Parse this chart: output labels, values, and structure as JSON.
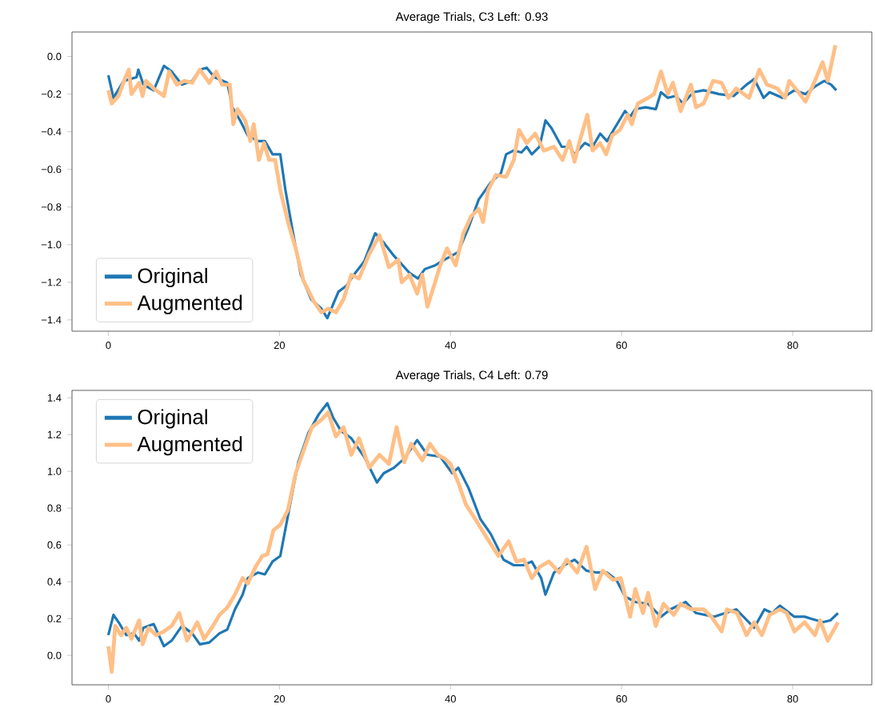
{
  "chart_data": [
    {
      "type": "line",
      "title": "Average Trials, C3 Left: 0.93",
      "legend": "bottom left",
      "xlim": [
        -4.25,
        89.25
      ],
      "ylim": [
        -1.46,
        0.13
      ],
      "xticks": [
        0,
        20,
        40,
        60,
        80
      ],
      "yticks": [
        {
          "value": -1.4,
          "label": "−1.4"
        },
        {
          "value": -1.2,
          "label": "−1.2"
        },
        {
          "value": -1.0,
          "label": "−1.0"
        },
        {
          "value": -0.8,
          "label": "−0.8"
        },
        {
          "value": -0.6,
          "label": "−0.6"
        },
        {
          "value": -0.4,
          "label": "−0.4"
        },
        {
          "value": -0.2,
          "label": "−0.2"
        },
        {
          "value": 0.0,
          "label": "0.0"
        }
      ],
      "series": [
        {
          "name": "Original",
          "color": "#1f77b4",
          "x": [
            0,
            0.6,
            1.8,
            3.3,
            3.5,
            4.1,
            5.3,
            6.5,
            7.4,
            8.6,
            9.8,
            10.7,
            11.5,
            12.4,
            13.9,
            14.5,
            15.4,
            16.3,
            17.5,
            18.3,
            19.2,
            20.1,
            20.7,
            21.6,
            22.5,
            23.7,
            24.9,
            25.6,
            26.9,
            27.8,
            28.7,
            29.9,
            31.2,
            32.2,
            33.4,
            35.2,
            36.2,
            37,
            38.2,
            39.3,
            40.9,
            42.1,
            43.3,
            44.7,
            45.9,
            46.5,
            47.4,
            48.3,
            48.9,
            49.5,
            50.4,
            51.1,
            51.8,
            53,
            53.9,
            54.5,
            55.7,
            56.6,
            57.5,
            58.3,
            59.2,
            60.4,
            61,
            61.6,
            62.8,
            64,
            64.6,
            65.4,
            66.3,
            67.2,
            68.4,
            69.6,
            71.4,
            73.1,
            74.6,
            75.5,
            76.6,
            77.3,
            78.8,
            80.2,
            81.5,
            82.6,
            83.7,
            84.5,
            85.1
          ],
          "values": [
            -0.1,
            -0.22,
            -0.13,
            -0.11,
            -0.07,
            -0.15,
            -0.18,
            -0.05,
            -0.08,
            -0.15,
            -0.13,
            -0.07,
            -0.06,
            -0.11,
            -0.14,
            -0.27,
            -0.34,
            -0.42,
            -0.45,
            -0.45,
            -0.52,
            -0.52,
            -0.71,
            -0.94,
            -1.16,
            -1.29,
            -1.34,
            -1.39,
            -1.25,
            -1.22,
            -1.16,
            -1.09,
            -0.94,
            -0.99,
            -1.06,
            -1.15,
            -1.18,
            -1.13,
            -1.11,
            -1.08,
            -1.04,
            -0.91,
            -0.76,
            -0.67,
            -0.62,
            -0.52,
            -0.5,
            -0.51,
            -0.48,
            -0.52,
            -0.48,
            -0.34,
            -0.38,
            -0.48,
            -0.48,
            -0.52,
            -0.46,
            -0.48,
            -0.41,
            -0.45,
            -0.38,
            -0.29,
            -0.32,
            -0.28,
            -0.27,
            -0.28,
            -0.19,
            -0.22,
            -0.21,
            -0.25,
            -0.19,
            -0.18,
            -0.2,
            -0.21,
            -0.15,
            -0.12,
            -0.22,
            -0.19,
            -0.22,
            -0.18,
            -0.2,
            -0.16,
            -0.13,
            -0.15,
            -0.18
          ]
        },
        {
          "name": "Augmented",
          "color": "#ffbf87",
          "x": [
            0,
            0.4,
            1.2,
            2,
            2.4,
            2.7,
            3.6,
            4,
            4.4,
            5.3,
            6.5,
            7.1,
            8,
            8.9,
            9.8,
            10.7,
            11.8,
            12.6,
            13.3,
            14.2,
            14.6,
            15.1,
            16,
            16.6,
            17,
            17.6,
            18.2,
            18.8,
            19.5,
            20.1,
            21,
            21.9,
            22.8,
            24,
            24.9,
            25.7,
            26.6,
            27.5,
            28.4,
            29.3,
            30.5,
            31.7,
            32.8,
            33.9,
            34.3,
            35.2,
            36.1,
            36.7,
            37.3,
            38.2,
            38.8,
            39.6,
            40.6,
            41.5,
            42.4,
            43.3,
            43.8,
            44.4,
            45.3,
            46.5,
            47.4,
            48,
            48.9,
            49.9,
            50.9,
            52.1,
            53.1,
            53.9,
            54.5,
            55.1,
            56,
            56.6,
            57.5,
            58.2,
            58.9,
            59.8,
            60.7,
            61.2,
            61.9,
            63.1,
            63.8,
            64.6,
            65.4,
            66,
            66.9,
            68.1,
            68.7,
            69.6,
            70.7,
            71.7,
            72.5,
            73.4,
            74.9,
            76.1,
            77,
            78.2,
            79.1,
            79.6,
            80.5,
            81.5,
            82.6,
            83.5,
            84.1,
            85
          ],
          "values": [
            -0.18,
            -0.25,
            -0.21,
            -0.11,
            -0.07,
            -0.2,
            -0.14,
            -0.21,
            -0.13,
            -0.17,
            -0.21,
            -0.08,
            -0.15,
            -0.13,
            -0.14,
            -0.07,
            -0.14,
            -0.08,
            -0.15,
            -0.15,
            -0.36,
            -0.28,
            -0.34,
            -0.45,
            -0.36,
            -0.55,
            -0.46,
            -0.55,
            -0.55,
            -0.71,
            -0.88,
            -1.02,
            -1.19,
            -1.3,
            -1.36,
            -1.34,
            -1.36,
            -1.29,
            -1.16,
            -1.18,
            -1.05,
            -0.95,
            -1.12,
            -1.08,
            -1.2,
            -1.16,
            -1.26,
            -1.16,
            -1.33,
            -1.2,
            -1.11,
            -1.02,
            -1.11,
            -0.94,
            -0.85,
            -0.81,
            -0.88,
            -0.71,
            -0.63,
            -0.64,
            -0.55,
            -0.39,
            -0.46,
            -0.41,
            -0.5,
            -0.48,
            -0.55,
            -0.45,
            -0.56,
            -0.45,
            -0.31,
            -0.5,
            -0.46,
            -0.52,
            -0.42,
            -0.39,
            -0.31,
            -0.36,
            -0.25,
            -0.22,
            -0.2,
            -0.08,
            -0.2,
            -0.14,
            -0.29,
            -0.15,
            -0.27,
            -0.25,
            -0.13,
            -0.14,
            -0.22,
            -0.17,
            -0.22,
            -0.07,
            -0.15,
            -0.17,
            -0.22,
            -0.13,
            -0.18,
            -0.24,
            -0.13,
            -0.03,
            -0.13,
            0.06
          ]
        }
      ]
    },
    {
      "type": "line",
      "title": "Average Trials, C4 Left: 0.79",
      "legend": "top left",
      "xlim": [
        -4.25,
        89.25
      ],
      "ylim": [
        -0.16,
        1.44
      ],
      "xticks": [
        0,
        20,
        40,
        60,
        80
      ],
      "yticks": [
        {
          "value": 0.0,
          "label": "0.0"
        },
        {
          "value": 0.2,
          "label": "0.2"
        },
        {
          "value": 0.4,
          "label": "0.4"
        },
        {
          "value": 0.6,
          "label": "0.6"
        },
        {
          "value": 0.8,
          "label": "0.8"
        },
        {
          "value": 1.0,
          "label": "1.0"
        },
        {
          "value": 1.2,
          "label": "1.2"
        },
        {
          "value": 1.4,
          "label": "1.4"
        }
      ],
      "series": [
        {
          "name": "Original",
          "color": "#1f77b4",
          "x": [
            0,
            0.6,
            1.2,
            2.1,
            3,
            3.6,
            4.1,
            5.3,
            6.5,
            7.4,
            8.6,
            9.8,
            10.7,
            11.8,
            13,
            13.9,
            14.8,
            15.7,
            16.3,
            17.5,
            18.3,
            19.2,
            20.1,
            21,
            22.2,
            23.4,
            24.6,
            25.6,
            26.3,
            27.2,
            28.4,
            29.9,
            31.4,
            32.2,
            33.4,
            34.6,
            36.1,
            37.3,
            38.8,
            40.2,
            40.9,
            42.1,
            43.5,
            44.7,
            46.2,
            47.4,
            48.5,
            49.5,
            50.6,
            51.1,
            52.1,
            53.3,
            54.5,
            55.9,
            57.1,
            58.3,
            59.4,
            60.4,
            61.6,
            63.1,
            64.6,
            65.7,
            67.5,
            68.7,
            70.8,
            73.4,
            75.5,
            76.7,
            77.6,
            78.5,
            80.2,
            81.4,
            83.5,
            84.4,
            85.3
          ],
          "values": [
            0.11,
            0.22,
            0.18,
            0.11,
            0.12,
            0.08,
            0.15,
            0.17,
            0.05,
            0.08,
            0.16,
            0.12,
            0.06,
            0.07,
            0.12,
            0.14,
            0.25,
            0.33,
            0.42,
            0.45,
            0.44,
            0.51,
            0.54,
            0.76,
            1.05,
            1.21,
            1.31,
            1.37,
            1.29,
            1.22,
            1.18,
            1.08,
            0.94,
            0.99,
            1.02,
            1.07,
            1.17,
            1.09,
            1.08,
            0.99,
            1.02,
            0.91,
            0.74,
            0.66,
            0.52,
            0.49,
            0.49,
            0.51,
            0.42,
            0.33,
            0.45,
            0.49,
            0.52,
            0.46,
            0.45,
            0.45,
            0.41,
            0.32,
            0.29,
            0.28,
            0.21,
            0.25,
            0.29,
            0.23,
            0.21,
            0.25,
            0.15,
            0.25,
            0.23,
            0.27,
            0.21,
            0.21,
            0.18,
            0.19,
            0.23
          ]
        },
        {
          "name": "Augmented",
          "color": "#ffbf87",
          "x": [
            0,
            0.4,
            0.8,
            1.5,
            2.1,
            2.7,
            3.6,
            4,
            4.7,
            5.6,
            6.5,
            7.4,
            8.3,
            9.2,
            10.4,
            11.2,
            12.1,
            13,
            13.9,
            14.8,
            15.7,
            16.3,
            17.2,
            18,
            18.6,
            19.3,
            20.1,
            21,
            21.9,
            22.8,
            23.8,
            24.9,
            25.7,
            26.6,
            27.5,
            28.4,
            29.3,
            30.5,
            31.7,
            32.8,
            33.7,
            34.6,
            35.4,
            36.7,
            37.6,
            38.5,
            39.3,
            40,
            40.9,
            41.8,
            42.9,
            44.1,
            45.6,
            46.8,
            47.7,
            48.6,
            49.5,
            50.4,
            51.5,
            52.7,
            53.6,
            54.8,
            55.9,
            56.9,
            57.8,
            59,
            59.9,
            61,
            61.6,
            62.5,
            63.1,
            64,
            64.9,
            66.1,
            66.9,
            68.1,
            69.6,
            70.5,
            71.7,
            72.3,
            73.5,
            74.6,
            75.5,
            76.4,
            77.3,
            78.5,
            79.3,
            80.2,
            81.4,
            82.6,
            83.2,
            84.1,
            85.3
          ],
          "values": [
            0.05,
            -0.09,
            0.16,
            0.11,
            0.15,
            0.09,
            0.19,
            0.06,
            0.15,
            0.11,
            0.13,
            0.16,
            0.23,
            0.08,
            0.18,
            0.09,
            0.15,
            0.22,
            0.26,
            0.33,
            0.42,
            0.39,
            0.48,
            0.54,
            0.55,
            0.68,
            0.71,
            0.79,
            0.99,
            1.11,
            1.24,
            1.28,
            1.32,
            1.19,
            1.24,
            1.09,
            1.18,
            1.02,
            1.09,
            1.04,
            1.24,
            1.05,
            1.15,
            1.06,
            1.15,
            1.09,
            1.07,
            1.04,
            0.94,
            0.82,
            0.74,
            0.65,
            0.54,
            0.62,
            0.51,
            0.52,
            0.42,
            0.48,
            0.51,
            0.45,
            0.52,
            0.45,
            0.59,
            0.36,
            0.46,
            0.41,
            0.42,
            0.21,
            0.36,
            0.23,
            0.34,
            0.16,
            0.28,
            0.22,
            0.28,
            0.25,
            0.25,
            0.21,
            0.13,
            0.25,
            0.23,
            0.11,
            0.18,
            0.11,
            0.22,
            0.25,
            0.23,
            0.13,
            0.18,
            0.11,
            0.19,
            0.08,
            0.18
          ]
        }
      ]
    }
  ]
}
